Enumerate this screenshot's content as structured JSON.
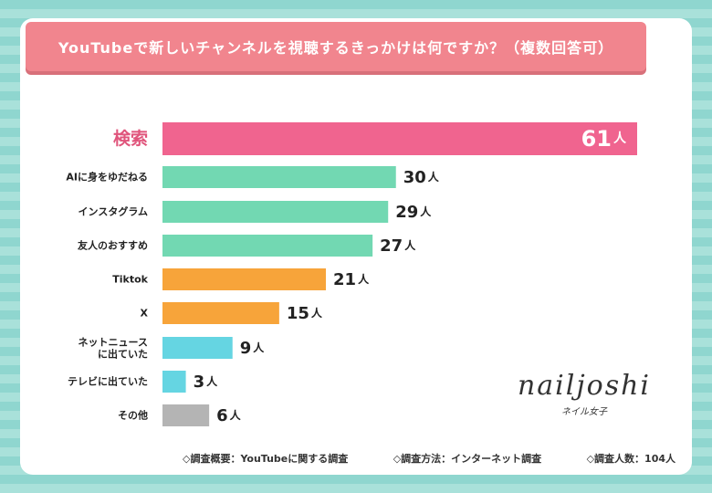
{
  "title": "YouTubeで新しいチャンネルを視聴するきっかけは何ですか？（複数回答可）",
  "chart_data": {
    "type": "bar",
    "orientation": "horizontal",
    "title": "YouTubeで新しいチャンネルを視聴するきっかけは何ですか？（複数回答可）",
    "unit": "人",
    "categories": [
      "検索",
      "AIに身をゆだねる",
      "インスタグラム",
      "友人のおすすめ",
      "Tiktok",
      "X",
      "ネットニュースに出ていた",
      "テレビに出ていた",
      "その他"
    ],
    "values": [
      61,
      30,
      29,
      27,
      21,
      15,
      9,
      3,
      6
    ],
    "colors": [
      "#f0648f",
      "#72d8b2",
      "#72d8b2",
      "#72d8b2",
      "#f7a43a",
      "#f7a43a",
      "#65d5e2",
      "#65d5e2",
      "#b4b4b4"
    ],
    "xlim": [
      0,
      61
    ]
  },
  "logo": {
    "brand": "nailjoshi",
    "sub": "ネイル女子"
  },
  "footer": [
    "◇調査概要：YouTubeに関する調査",
    "◇調査方法：インターネット調査",
    "◇調査人数：104人"
  ]
}
